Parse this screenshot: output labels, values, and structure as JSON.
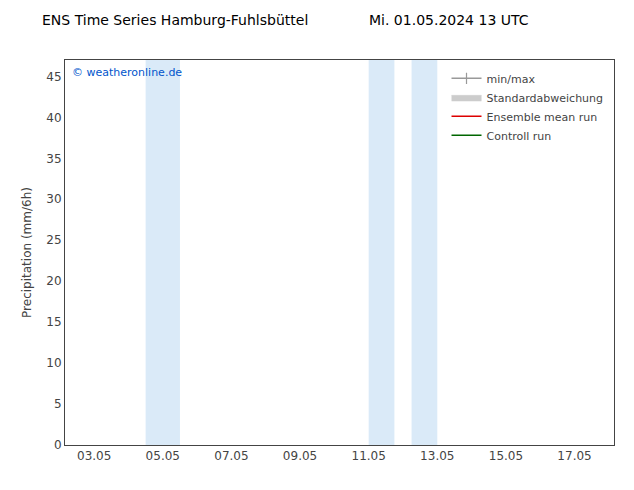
{
  "chart_data": {
    "type": "line",
    "title": "ENS Time Series Hamburg-Fuhlsbüttel",
    "subtitle": "Mi. 01.05.2024 13 UTC",
    "ylabel": "Precipitation (mm/6h)",
    "annotations": [
      {
        "text": "© weatheronline.de",
        "color": "#0055cc"
      }
    ],
    "xlim": [
      2.2,
      18.2
    ],
    "xticks": [
      {
        "value": 3.05,
        "label": "03.05"
      },
      {
        "value": 5.05,
        "label": "05.05"
      },
      {
        "value": 7.05,
        "label": "07.05"
      },
      {
        "value": 9.05,
        "label": "09.05"
      },
      {
        "value": 11.05,
        "label": "11.05"
      },
      {
        "value": 13.05,
        "label": "13.05"
      },
      {
        "value": 15.05,
        "label": "15.05"
      },
      {
        "value": 17.05,
        "label": "17.05"
      }
    ],
    "ylim": [
      0,
      47
    ],
    "yticks": [
      0,
      5,
      10,
      15,
      20,
      25,
      30,
      35,
      40,
      45
    ],
    "shaded_regions": {
      "color": "#daeaf8",
      "ranges": [
        {
          "x0": 4.55,
          "x1": 5.55
        },
        {
          "x0": 11.05,
          "x1": 11.8
        },
        {
          "x0": 12.3,
          "x1": 13.05
        }
      ]
    },
    "series": [
      {
        "name": "min/max",
        "type": "line",
        "marker": "vline",
        "color": "#999999",
        "values": []
      },
      {
        "name": "Standardabweichung",
        "type": "area",
        "color": "#cccccc",
        "values": []
      },
      {
        "name": "Ensemble mean run",
        "type": "line",
        "color": "#dd0000",
        "values": []
      },
      {
        "name": "Controll run",
        "type": "line",
        "color": "#006600",
        "values": []
      }
    ],
    "legend": "upper right",
    "grid": false
  }
}
